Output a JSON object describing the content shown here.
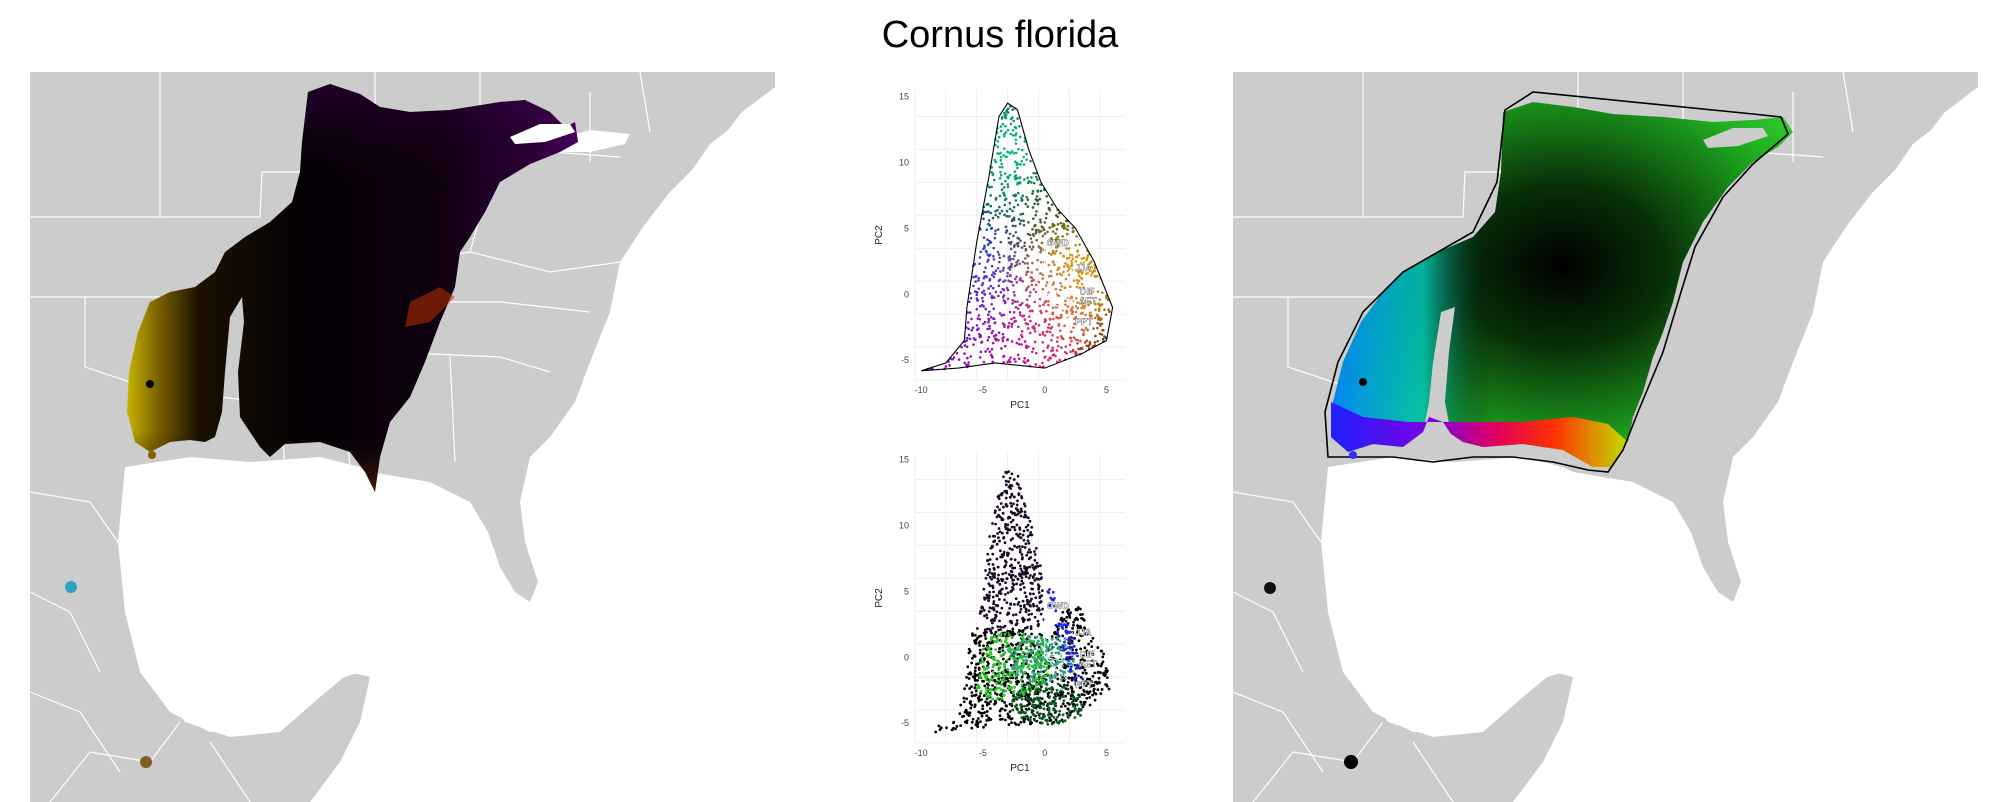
{
  "figure": {
    "title": "Cornus florida"
  },
  "colors": {
    "land": "#cccccc",
    "borders": "#ffffff",
    "hull": "#000000"
  },
  "chart_data": [
    {
      "type": "scatter",
      "panel": "top",
      "xlabel": "PC1",
      "ylabel": "PC2",
      "xlim": [
        -10.5,
        6.5
      ],
      "ylim": [
        -6.5,
        15.5
      ],
      "xticks": [
        -10,
        -5,
        0,
        5
      ],
      "yticks": [
        -5,
        0,
        5,
        10,
        15
      ],
      "grid": true,
      "hull": [
        [
          -10,
          -5.8
        ],
        [
          -8,
          -5.2
        ],
        [
          -6.5,
          -3.5
        ],
        [
          -6.3,
          -1
        ],
        [
          -5.5,
          4
        ],
        [
          -4.5,
          9
        ],
        [
          -3.7,
          13.5
        ],
        [
          -3,
          14.5
        ],
        [
          -2.2,
          14
        ],
        [
          -1.3,
          11
        ],
        [
          -0.3,
          8.5
        ],
        [
          1,
          6.5
        ],
        [
          2.5,
          5
        ],
        [
          4,
          2.5
        ],
        [
          5.5,
          -1
        ],
        [
          5,
          -3.5
        ],
        [
          3,
          -4.5
        ],
        [
          0,
          -5.6
        ],
        [
          -4,
          -5.2
        ],
        [
          -7,
          -5.6
        ],
        [
          -10,
          -5.8
        ]
      ],
      "color_fields": [
        {
          "x": -3,
          "y": 11,
          "color": "#00c070"
        },
        {
          "x": 2.5,
          "y": 1,
          "color": "#d8b000"
        },
        {
          "x": -1,
          "y": -3.8,
          "color": "#e0008a"
        },
        {
          "x": -6,
          "y": 1,
          "color": "#2040e0"
        },
        {
          "x": -7,
          "y": -4.5,
          "color": "#a000c0"
        }
      ],
      "vectors": [
        {
          "label": "GWD",
          "x": 0,
          "y": 3.9
        },
        {
          "label": "JJA",
          "x": 2.3,
          "y": 2
        },
        {
          "label": "DIF",
          "x": 2.7,
          "y": 0.2
        },
        {
          "label": "AET",
          "x": 2.6,
          "y": -0.5
        },
        {
          "label": "PPT",
          "x": 2.3,
          "y": -2.1
        }
      ]
    },
    {
      "type": "scatter",
      "panel": "bottom",
      "xlabel": "PC1",
      "ylabel": "PC2",
      "xlim": [
        -10.5,
        6.5
      ],
      "ylim": [
        -6.5,
        15.5
      ],
      "xticks": [
        -10,
        -5,
        0,
        5
      ],
      "yticks": [
        -5,
        0,
        5,
        10,
        15
      ],
      "grid": true,
      "clusters": [
        {
          "color": "#1a0a26",
          "poly": [
            [
              -5.5,
              2
            ],
            [
              -4.5,
              9
            ],
            [
              -3.5,
              13.5
            ],
            [
              -3,
              14.5
            ],
            [
              -2.2,
              14
            ],
            [
              -1.3,
              11
            ],
            [
              -0.3,
              7
            ],
            [
              0,
              2.5
            ],
            [
              -3,
              1.5
            ]
          ]
        },
        {
          "color": "#000000",
          "poly": [
            [
              -10,
              -5.8
            ],
            [
              -7,
              -4.5
            ],
            [
              -6.5,
              -2
            ],
            [
              -6,
              1.8
            ],
            [
              -2,
              2.3
            ],
            [
              0.5,
              1.5
            ],
            [
              1.5,
              3.5
            ],
            [
              2.8,
              4
            ],
            [
              3.5,
              2
            ],
            [
              5,
              0
            ],
            [
              5.3,
              -2.5
            ],
            [
              4,
              -3.5
            ],
            [
              1,
              -5
            ],
            [
              -4,
              -5.2
            ],
            [
              -7.5,
              -5.6
            ],
            [
              -10,
              -5.8
            ]
          ]
        },
        {
          "color": "#28c828",
          "poly": [
            [
              -5.5,
              -2.5
            ],
            [
              -5,
              1.5
            ],
            [
              -2.5,
              2
            ],
            [
              0.2,
              1.5
            ],
            [
              0.5,
              -1.5
            ],
            [
              -1.5,
              -3
            ],
            [
              -4.5,
              -3.2
            ]
          ]
        },
        {
          "color": "#30a080",
          "poly": [
            [
              -3,
              0.5
            ],
            [
              -1,
              1.8
            ],
            [
              1.2,
              1.5
            ],
            [
              2.5,
              0.5
            ],
            [
              2.2,
              -1.5
            ],
            [
              0,
              -2.3
            ],
            [
              -2.5,
              -1.5
            ]
          ]
        },
        {
          "color": "#0a5a20",
          "poly": [
            [
              -2.8,
              -3
            ],
            [
              -2.5,
              -4.5
            ],
            [
              0.5,
              -5.2
            ],
            [
              3,
              -4.5
            ],
            [
              3,
              -2.5
            ],
            [
              1,
              -2
            ],
            [
              -1.5,
              -2
            ]
          ]
        },
        {
          "color": "#2020e0",
          "poly": [
            [
              0.3,
              6
            ],
            [
              1.2,
              4
            ],
            [
              2.5,
              1
            ],
            [
              3.2,
              -2
            ],
            [
              2.7,
              -2.5
            ],
            [
              1.8,
              -0.5
            ],
            [
              0.8,
              2.5
            ],
            [
              0.2,
              4.5
            ]
          ]
        }
      ],
      "vectors": [
        {
          "label": "GWD",
          "x": 0,
          "y": 3.9
        },
        {
          "label": "JJA",
          "x": 2.3,
          "y": 1.9
        },
        {
          "label": "DIF",
          "x": 2.7,
          "y": 0.2
        },
        {
          "label": "AET",
          "x": 2.6,
          "y": -0.5
        },
        {
          "label": "PPT",
          "x": 2.3,
          "y": -2.1
        }
      ]
    }
  ]
}
